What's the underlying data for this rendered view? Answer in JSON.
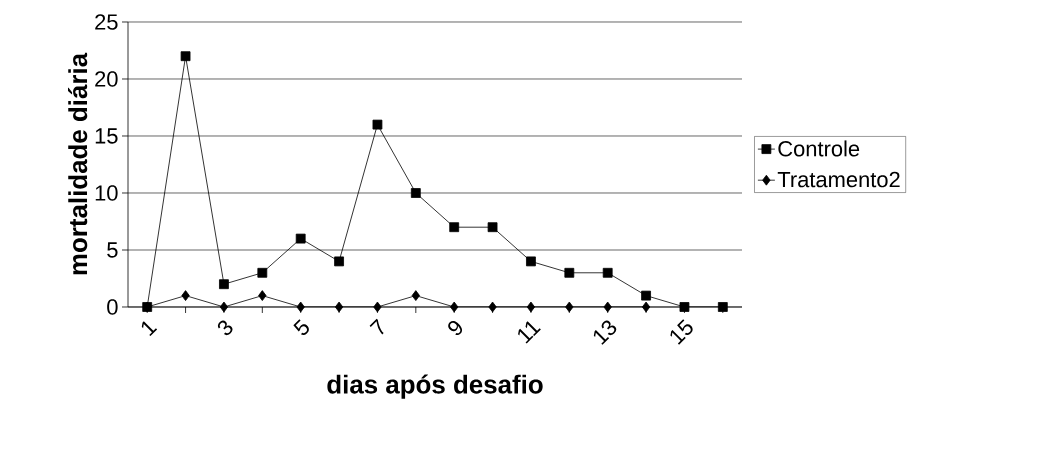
{
  "chart_data": {
    "type": "line",
    "xlabel": "dias após desafio",
    "ylabel": "mortalidade diária",
    "categories": [
      "1",
      null,
      "3",
      null,
      "5",
      null,
      "7",
      null,
      "9",
      null,
      "11",
      null,
      "13",
      null,
      "15",
      null
    ],
    "series": [
      {
        "name": "Controle",
        "color": "#000000",
        "marker": "square",
        "values": [
          0,
          22,
          2,
          3,
          6,
          4,
          16,
          10,
          7,
          7,
          4,
          3,
          3,
          1,
          0,
          0
        ]
      },
      {
        "name": "Tratamento2",
        "color": "#000000",
        "marker": "diamond",
        "values": [
          0,
          1,
          0,
          1,
          0,
          0,
          0,
          1,
          0,
          0,
          0,
          0,
          0,
          0,
          null,
          null
        ]
      }
    ],
    "ylim": [
      0,
      25
    ],
    "yticks": [
      0,
      5,
      10,
      15,
      20,
      25
    ],
    "grid": "y",
    "legend": "right",
    "line_style": "solid"
  }
}
